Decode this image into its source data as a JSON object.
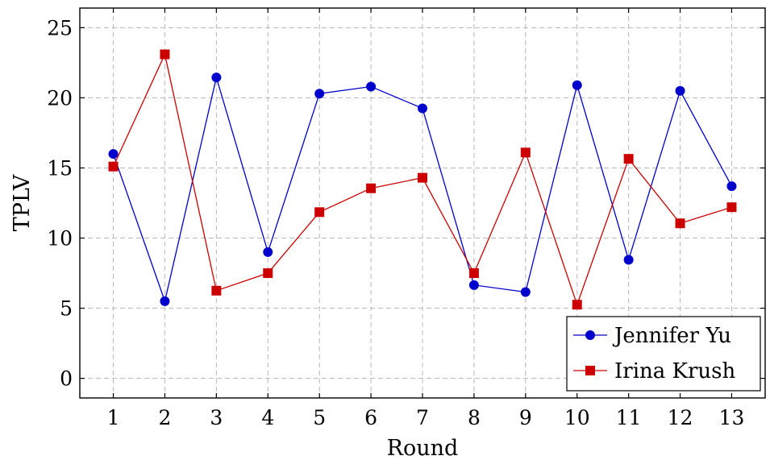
{
  "chart_data": {
    "type": "line",
    "title": "",
    "xlabel": "Round",
    "ylabel": "TPLV",
    "x": [
      1,
      2,
      3,
      4,
      5,
      6,
      7,
      8,
      9,
      10,
      11,
      12,
      13
    ],
    "xlim": [
      0.35,
      13.65
    ],
    "ylim": [
      -1.4,
      26.4
    ],
    "yticks": [
      0,
      5,
      10,
      15,
      20,
      25
    ],
    "grid": true,
    "legend_position": "bottom-right",
    "series": [
      {
        "name": "Jennifer Yu",
        "color": "#0000cc",
        "marker": "circle",
        "values": [
          16.0,
          5.5,
          21.45,
          9.0,
          20.3,
          20.8,
          19.25,
          6.65,
          6.15,
          20.9,
          8.45,
          20.5,
          13.7
        ]
      },
      {
        "name": "Irina Krush",
        "color": "#cc0000",
        "marker": "square",
        "values": [
          15.1,
          23.1,
          6.25,
          7.5,
          11.85,
          13.55,
          14.3,
          7.5,
          16.1,
          5.25,
          15.65,
          11.05,
          12.2
        ]
      }
    ]
  }
}
